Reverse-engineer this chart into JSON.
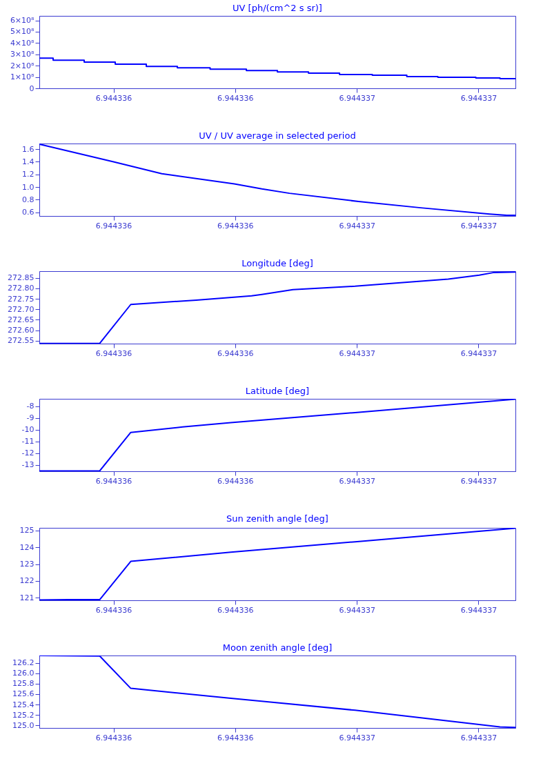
{
  "chart_data": [
    {
      "type": "step",
      "title": "UV [ph/(cm^2 s sr)]",
      "color": "#0000ff",
      "x": [
        6.9443355561,
        6.9443356015,
        6.9443357036,
        6.9443358057,
        6.9443359078,
        6.9443360099,
        6.9443361176,
        6.9443362368,
        6.9443363389,
        6.944336441,
        6.9443365431,
        6.9443366508,
        6.9443367643,
        6.9443368664,
        6.9443369912,
        6.9443370706,
        6.9443371214
      ],
      "values": [
        267000000.0,
        249000000.0,
        231000000.0,
        214000000.0,
        193000000.0,
        181000000.0,
        169000000.0,
        157000000.0,
        145000000.0,
        134000000.0,
        122000000.0,
        116000000.0,
        104000000.0,
        98000000.0,
        92000000.0,
        86000000.0,
        86000000.0
      ],
      "xlim": [
        6.9443355561,
        6.9443371214
      ],
      "xticks": [
        {
          "value": 6.9443358,
          "label": "6.944336"
        },
        {
          "value": 6.9443362,
          "label": "6.944336"
        },
        {
          "value": 6.9443366,
          "label": "6.944337"
        },
        {
          "value": 6.944337,
          "label": "6.944337"
        }
      ],
      "ylim": [
        0,
        640000000.0
      ],
      "yticks": [
        0,
        {
          "value": 100000000.0,
          "label": "1×10⁸"
        },
        {
          "value": 200000000.0,
          "label": "2×10⁸"
        },
        {
          "value": 300000000.0,
          "label": "3×10⁸"
        },
        {
          "value": 400000000.0,
          "label": "4×10⁸"
        },
        {
          "value": 500000000.0,
          "label": "5×10⁸"
        },
        {
          "value": 600000000.0,
          "label": "6×10⁸"
        }
      ]
    },
    {
      "type": "line",
      "title": "UV / UV average in selected period",
      "color": "#0000ff",
      "x": [
        6.9443355561,
        6.9443358,
        6.9443359588,
        6.9443361971,
        6.9443362878,
        6.9443363786,
        6.9443366055,
        6.9443368097,
        6.9443370366,
        6.9443370933,
        6.9443371214
      ],
      "values": [
        1.68,
        1.4,
        1.21,
        1.05,
        0.97,
        0.9,
        0.77,
        0.67,
        0.57,
        0.55,
        0.55
      ],
      "xlim": [
        6.9443355561,
        6.9443371214
      ],
      "xticks": [
        {
          "value": 6.9443358,
          "label": "6.944336"
        },
        {
          "value": 6.9443362,
          "label": "6.944336"
        },
        {
          "value": 6.9443366,
          "label": "6.944337"
        },
        {
          "value": 6.944337,
          "label": "6.944337"
        }
      ],
      "ylim": [
        0.54,
        1.69
      ],
      "yticks": [
        0.6,
        0.8,
        {
          "value": 1,
          "label": "1.0"
        },
        1.2,
        1.4,
        1.6
      ]
    },
    {
      "type": "line",
      "title": "Longitude [deg]",
      "color": "#0000ff",
      "x": [
        6.9443355561,
        6.9443357546,
        6.9443358567,
        6.9443360723,
        6.9443362538,
        6.9443362878,
        6.9443363899,
        6.9443365941,
        6.9443369004,
        6.9443370025,
        6.9443370479,
        6.9443371214
      ],
      "values": [
        272.537,
        272.537,
        272.723,
        272.744,
        272.764,
        272.771,
        272.794,
        272.81,
        272.844,
        272.863,
        272.875,
        272.878
      ],
      "xlim": [
        6.9443355561,
        6.9443371214
      ],
      "xticks": [
        {
          "value": 6.9443358,
          "label": "6.944336"
        },
        {
          "value": 6.9443362,
          "label": "6.944336"
        },
        {
          "value": 6.9443366,
          "label": "6.944337"
        },
        {
          "value": 6.944337,
          "label": "6.944337"
        }
      ],
      "ylim": [
        272.536,
        272.882
      ],
      "yticks": [
        272.55,
        {
          "value": 272.6,
          "label": "272.60"
        },
        272.65,
        {
          "value": 272.7,
          "label": "272.70"
        },
        272.75,
        {
          "value": 272.8,
          "label": "272.80"
        },
        272.85
      ]
    },
    {
      "type": "line",
      "title": "Latitude [deg]",
      "color": "#0000ff",
      "x": [
        6.9443355561,
        6.9443357546,
        6.9443358567,
        6.9443360269,
        6.9443361857,
        6.9443365941,
        6.9443371214
      ],
      "values": [
        -13.51,
        -13.51,
        -10.23,
        -9.77,
        -9.4,
        -8.54,
        -7.4
      ],
      "xlim": [
        6.9443355561,
        6.9443371214
      ],
      "xticks": [
        {
          "value": 6.9443358,
          "label": "6.944336"
        },
        {
          "value": 6.9443362,
          "label": "6.944336"
        },
        {
          "value": 6.9443366,
          "label": "6.944337"
        },
        {
          "value": 6.944337,
          "label": "6.944337"
        }
      ],
      "ylim": [
        -13.54,
        -7.37
      ],
      "yticks": [
        -13,
        -12,
        -11,
        -10,
        -9,
        -8
      ]
    },
    {
      "type": "line",
      "title": "Sun zenith angle [deg]",
      "color": "#0000ff",
      "x": [
        6.9443355561,
        6.9443356525,
        6.9443357546,
        6.9443358567,
        6.9443361857,
        6.9443365941,
        6.9443371214
      ],
      "values": [
        120.86,
        120.88,
        120.88,
        123.16,
        123.71,
        124.33,
        125.14
      ],
      "xlim": [
        6.9443355561,
        6.9443371214
      ],
      "xticks": [
        {
          "value": 6.9443358,
          "label": "6.944336"
        },
        {
          "value": 6.9443362,
          "label": "6.944336"
        },
        {
          "value": 6.9443366,
          "label": "6.944337"
        },
        {
          "value": 6.944337,
          "label": "6.944337"
        }
      ],
      "ylim": [
        120.84,
        125.16
      ],
      "yticks": [
        121,
        122,
        123,
        124,
        125
      ]
    },
    {
      "type": "line",
      "title": "Moon zenith angle [deg]",
      "color": "#0000ff",
      "x": [
        6.9443355561,
        6.9443357546,
        6.9443358567,
        6.9443361857,
        6.9443365941,
        6.9443370706,
        6.9443371214
      ],
      "values": [
        126.34,
        126.33,
        125.71,
        125.52,
        125.29,
        124.97,
        124.96
      ],
      "xlim": [
        6.9443355561,
        6.9443371214
      ],
      "xticks": [
        {
          "value": 6.9443358,
          "label": "6.944336"
        },
        {
          "value": 6.9443362,
          "label": "6.944336"
        },
        {
          "value": 6.9443366,
          "label": "6.944337"
        },
        {
          "value": 6.944337,
          "label": "6.944337"
        }
      ],
      "ylim": [
        124.95,
        126.34
      ],
      "yticks": [
        {
          "value": 125,
          "label": "125.0"
        },
        125.2,
        125.4,
        125.6,
        125.8,
        {
          "value": 126,
          "label": "126.0"
        },
        126.2
      ]
    }
  ]
}
